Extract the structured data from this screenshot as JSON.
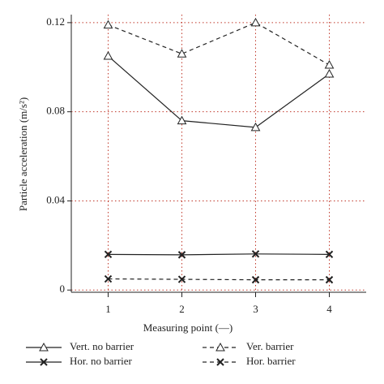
{
  "chart_data": {
    "type": "line",
    "x_label": "Measuring point (—)",
    "y_label": "Particle acceleration (m/s²)",
    "x": [
      1,
      2,
      3,
      4
    ],
    "xlim": [
      0.5,
      4.5
    ],
    "xticks": [
      1,
      2,
      3,
      4
    ],
    "ylim": [
      -0.001,
      0.1236
    ],
    "yticks": [
      0,
      0.04,
      0.08,
      0.12
    ],
    "grid": true,
    "grid_color": "#c0392b",
    "series": [
      {
        "name": "Vert. no barrier",
        "color": "#222222",
        "linestyle": "solid",
        "marker": "triangle",
        "values": [
          0.105,
          0.076,
          0.073,
          0.097
        ]
      },
      {
        "name": "Ver. barrier",
        "color": "#222222",
        "linestyle": "dashed",
        "marker": "triangle",
        "values": [
          0.119,
          0.106,
          0.12,
          0.101
        ]
      },
      {
        "name": "Hor. no barrier",
        "color": "#222222",
        "linestyle": "solid",
        "marker": "x",
        "values": [
          0.016,
          0.0158,
          0.0162,
          0.016
        ]
      },
      {
        "name": "Hor. barrier",
        "color": "#222222",
        "linestyle": "dashed",
        "marker": "x",
        "values": [
          0.005,
          0.0048,
          0.0046,
          0.0046
        ]
      }
    ]
  }
}
